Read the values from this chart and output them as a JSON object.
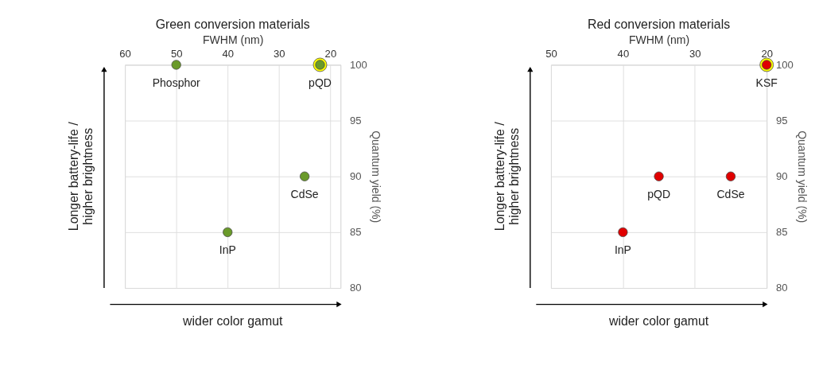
{
  "chart_data": [
    {
      "type": "scatter",
      "title": "Green conversion materials",
      "xlabel": "FWHM (nm)",
      "ylabel": "Quantum yield (%)",
      "xlim": [
        60,
        18
      ],
      "xticks": [
        60,
        50,
        40,
        30,
        20
      ],
      "ylim": [
        80,
        100
      ],
      "yticks": [
        80,
        85,
        90,
        95,
        100
      ],
      "grid": true,
      "marker": "circle",
      "series": [
        {
          "color": "#ffff00",
          "x": [
            22
          ],
          "values": [
            100
          ]
        },
        {
          "color": "#6a9a2a",
          "x": [
            50,
            22,
            25,
            40
          ],
          "values": [
            100,
            100,
            90,
            85
          ]
        }
      ],
      "annotations": [
        {
          "text": "Phosphor",
          "x": 50,
          "y": 100
        },
        {
          "text": "pQD",
          "x": 22,
          "y": 100
        },
        {
          "text": "CdSe",
          "x": 25,
          "y": 90
        },
        {
          "text": "InP",
          "x": 40,
          "y": 85
        },
        "Longer battery-life /\nhigher brightness",
        "wider color gamut"
      ]
    },
    {
      "type": "scatter",
      "title": "Red conversion materials",
      "xlabel": "FWHM (nm)",
      "ylabel": "Quantum yield (%)",
      "xlim": [
        50,
        20
      ],
      "xticks": [
        50,
        40,
        30,
        20
      ],
      "ylim": [
        80,
        100
      ],
      "yticks": [
        80,
        85,
        90,
        95,
        100
      ],
      "grid": true,
      "marker": "circle",
      "series": [
        {
          "color": "#ffff00",
          "x": [
            20
          ],
          "values": [
            100
          ]
        },
        {
          "color": "#e00000",
          "x": [
            20,
            35,
            25,
            40
          ],
          "values": [
            100,
            90,
            90,
            85
          ]
        }
      ],
      "annotations": [
        {
          "text": "KSF",
          "x": 20,
          "y": 100
        },
        {
          "text": "pQD",
          "x": 35,
          "y": 90
        },
        {
          "text": "CdSe",
          "x": 25,
          "y": 90
        },
        {
          "text": "InP",
          "x": 40,
          "y": 85
        },
        "Longer battery-life /\nhigher brightness",
        "wider color gamut"
      ]
    }
  ]
}
